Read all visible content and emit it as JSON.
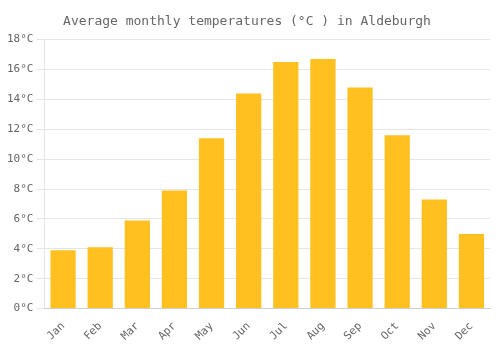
{
  "chart_data": {
    "type": "bar",
    "title": "Average monthly temperatures (°C ) in Aldeburgh",
    "categories": [
      "Jan",
      "Feb",
      "Mar",
      "Apr",
      "May",
      "Jun",
      "Jul",
      "Aug",
      "Sep",
      "Oct",
      "Nov",
      "Dec"
    ],
    "values": [
      3.9,
      4.1,
      5.9,
      7.9,
      11.4,
      14.4,
      16.5,
      16.7,
      14.8,
      11.6,
      7.3,
      5.0
    ],
    "color": "#FFC020",
    "ylim": [
      0,
      18
    ],
    "yticks": [
      {
        "value": 0,
        "label": "0°C"
      },
      {
        "value": 2,
        "label": "2°C"
      },
      {
        "value": 4,
        "label": "4°C"
      },
      {
        "value": 6,
        "label": "6°C"
      },
      {
        "value": 8,
        "label": "8°C"
      },
      {
        "value": 10,
        "label": "10°C"
      },
      {
        "value": 12,
        "label": "12°C"
      },
      {
        "value": 14,
        "label": "14°C"
      },
      {
        "value": 16,
        "label": "16°C"
      },
      {
        "value": 18,
        "label": "18°C"
      }
    ],
    "grid": true
  }
}
